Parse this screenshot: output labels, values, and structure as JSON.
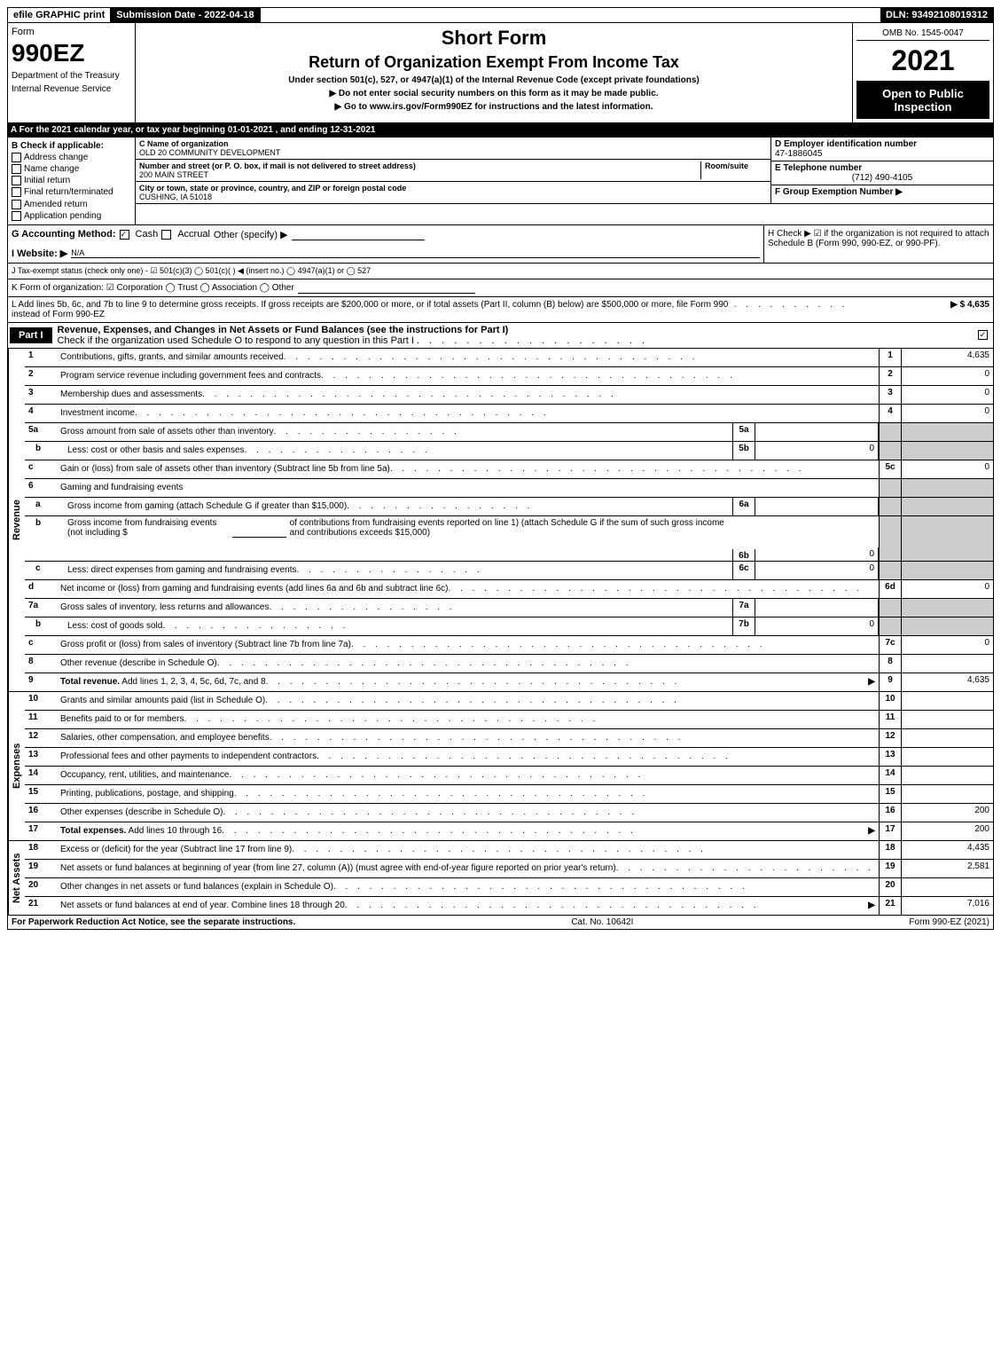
{
  "top_bar": {
    "efile": "efile GRAPHIC print",
    "submission_date_label": "Submission Date - 2022-04-18",
    "dln": "DLN: 93492108019312"
  },
  "header": {
    "form_label": "Form",
    "form_number": "990EZ",
    "dept1": "Department of the Treasury",
    "dept2": "Internal Revenue Service",
    "short_form": "Short Form",
    "return_title": "Return of Organization Exempt From Income Tax",
    "under_section": "Under section 501(c), 527, or 4947(a)(1) of the Internal Revenue Code (except private foundations)",
    "do_not": "▶ Do not enter social security numbers on this form as it may be made public.",
    "go_to": "▶ Go to www.irs.gov/Form990EZ for instructions and the latest information.",
    "omb": "OMB No. 1545-0047",
    "year": "2021",
    "open_public": "Open to Public Inspection"
  },
  "line_A": "A  For the 2021 calendar year, or tax year beginning 01-01-2021 , and ending 12-31-2021",
  "section_B": {
    "label": "B  Check if applicable:",
    "items": [
      {
        "label": "Address change",
        "checked": false
      },
      {
        "label": "Name change",
        "checked": false
      },
      {
        "label": "Initial return",
        "checked": false
      },
      {
        "label": "Final return/terminated",
        "checked": false
      },
      {
        "label": "Amended return",
        "checked": false
      },
      {
        "label": "Application pending",
        "checked": false
      }
    ]
  },
  "section_C": {
    "name_label": "C Name of organization",
    "name": "OLD 20 COMMUNITY DEVELOPMENT",
    "street_label": "Number and street (or P. O. box, if mail is not delivered to street address)",
    "room_label": "Room/suite",
    "street": "200 MAIN STREET",
    "city_label": "City or town, state or province, country, and ZIP or foreign postal code",
    "city": "CUSHING, IA  51018"
  },
  "section_D": {
    "label": "D Employer identification number",
    "value": "47-1886045"
  },
  "section_E": {
    "label": "E Telephone number",
    "value": "(712) 490-4105"
  },
  "section_F": {
    "label": "F Group Exemption Number  ▶",
    "value": ""
  },
  "section_G": {
    "label": "G Accounting Method:",
    "cash_label": "Cash",
    "accrual_label": "Accrual",
    "other_label": "Other (specify) ▶"
  },
  "section_H": {
    "text": "H  Check ▶ ☑ if the organization is not required to attach Schedule B (Form 990, 990-EZ, or 990-PF)."
  },
  "section_I": {
    "label": "I Website: ▶",
    "value": "N/A"
  },
  "section_J": "J Tax-exempt status (check only one) - ☑ 501(c)(3)  ◯ 501(c)(  ) ◀ (insert no.)  ◯ 4947(a)(1) or  ◯ 527",
  "section_K": "K Form of organization:  ☑ Corporation   ◯ Trust   ◯ Association   ◯ Other",
  "section_L": {
    "text": "L Add lines 5b, 6c, and 7b to line 9 to determine gross receipts. If gross receipts are $200,000 or more, or if total assets (Part II, column (B) below) are $500,000 or more, file Form 990 instead of Form 990-EZ",
    "amount": "▶ $ 4,635"
  },
  "part1": {
    "label": "Part I",
    "title": "Revenue, Expenses, and Changes in Net Assets or Fund Balances (see the instructions for Part I)",
    "check_text": "Check if the organization used Schedule O to respond to any question in this Part I"
  },
  "side_labels": {
    "revenue": "Revenue",
    "expenses": "Expenses",
    "net_assets": "Net Assets"
  },
  "revenue_lines": [
    {
      "num": "1",
      "desc": "Contributions, gifts, grants, and similar amounts received",
      "right_num": "1",
      "right_val": "4,635"
    },
    {
      "num": "2",
      "desc": "Program service revenue including government fees and contracts",
      "right_num": "2",
      "right_val": "0"
    },
    {
      "num": "3",
      "desc": "Membership dues and assessments",
      "right_num": "3",
      "right_val": "0"
    },
    {
      "num": "4",
      "desc": "Investment income",
      "right_num": "4",
      "right_val": "0"
    }
  ],
  "line_5a": {
    "num": "5a",
    "desc": "Gross amount from sale of assets other than inventory",
    "inner_num": "5a",
    "inner_val": ""
  },
  "line_5b": {
    "num": "b",
    "desc": "Less: cost or other basis and sales expenses",
    "inner_num": "5b",
    "inner_val": "0"
  },
  "line_5c": {
    "num": "c",
    "desc": "Gain or (loss) from sale of assets other than inventory (Subtract line 5b from line 5a)",
    "right_num": "5c",
    "right_val": "0"
  },
  "line_6": {
    "num": "6",
    "desc": "Gaming and fundraising events"
  },
  "line_6a": {
    "num": "a",
    "desc": "Gross income from gaming (attach Schedule G if greater than $15,000)",
    "inner_num": "6a",
    "inner_val": ""
  },
  "line_6b": {
    "num": "b",
    "desc1": "Gross income from fundraising events (not including $",
    "desc2": "of contributions from fundraising events reported on line 1) (attach Schedule G if the sum of such gross income and contributions exceeds $15,000)",
    "inner_num": "6b",
    "inner_val": "0"
  },
  "line_6c": {
    "num": "c",
    "desc": "Less: direct expenses from gaming and fundraising events",
    "inner_num": "6c",
    "inner_val": "0"
  },
  "line_6d": {
    "num": "d",
    "desc": "Net income or (loss) from gaming and fundraising events (add lines 6a and 6b and subtract line 6c)",
    "right_num": "6d",
    "right_val": "0"
  },
  "line_7a": {
    "num": "7a",
    "desc": "Gross sales of inventory, less returns and allowances",
    "inner_num": "7a",
    "inner_val": ""
  },
  "line_7b": {
    "num": "b",
    "desc": "Less: cost of goods sold",
    "inner_num": "7b",
    "inner_val": "0"
  },
  "line_7c": {
    "num": "c",
    "desc": "Gross profit or (loss) from sales of inventory (Subtract line 7b from line 7a)",
    "right_num": "7c",
    "right_val": "0"
  },
  "line_8": {
    "num": "8",
    "desc": "Other revenue (describe in Schedule O)",
    "right_num": "8",
    "right_val": ""
  },
  "line_9": {
    "num": "9",
    "desc": "Total revenue. Add lines 1, 2, 3, 4, 5c, 6d, 7c, and 8",
    "arrow": "▶",
    "right_num": "9",
    "right_val": "4,635"
  },
  "expense_lines": [
    {
      "num": "10",
      "desc": "Grants and similar amounts paid (list in Schedule O)",
      "right_num": "10",
      "right_val": ""
    },
    {
      "num": "11",
      "desc": "Benefits paid to or for members",
      "right_num": "11",
      "right_val": ""
    },
    {
      "num": "12",
      "desc": "Salaries, other compensation, and employee benefits",
      "right_num": "12",
      "right_val": ""
    },
    {
      "num": "13",
      "desc": "Professional fees and other payments to independent contractors",
      "right_num": "13",
      "right_val": ""
    },
    {
      "num": "14",
      "desc": "Occupancy, rent, utilities, and maintenance",
      "right_num": "14",
      "right_val": ""
    },
    {
      "num": "15",
      "desc": "Printing, publications, postage, and shipping",
      "right_num": "15",
      "right_val": ""
    },
    {
      "num": "16",
      "desc": "Other expenses (describe in Schedule O)",
      "right_num": "16",
      "right_val": "200"
    },
    {
      "num": "17",
      "desc": "Total expenses. Add lines 10 through 16",
      "arrow": "▶",
      "right_num": "17",
      "right_val": "200",
      "bold": true
    }
  ],
  "net_assets_lines": [
    {
      "num": "18",
      "desc": "Excess or (deficit) for the year (Subtract line 17 from line 9)",
      "right_num": "18",
      "right_val": "4,435"
    },
    {
      "num": "19",
      "desc": "Net assets or fund balances at beginning of year (from line 27, column (A)) (must agree with end-of-year figure reported on prior year's return)",
      "right_num": "19",
      "right_val": "2,581"
    },
    {
      "num": "20",
      "desc": "Other changes in net assets or fund balances (explain in Schedule O)",
      "right_num": "20",
      "right_val": ""
    },
    {
      "num": "21",
      "desc": "Net assets or fund balances at end of year. Combine lines 18 through 20",
      "arrow": "▶",
      "right_num": "21",
      "right_val": "7,016"
    }
  ],
  "footer": {
    "left": "For Paperwork Reduction Act Notice, see the separate instructions.",
    "center": "Cat. No. 10642I",
    "right": "Form 990-EZ (2021)"
  }
}
